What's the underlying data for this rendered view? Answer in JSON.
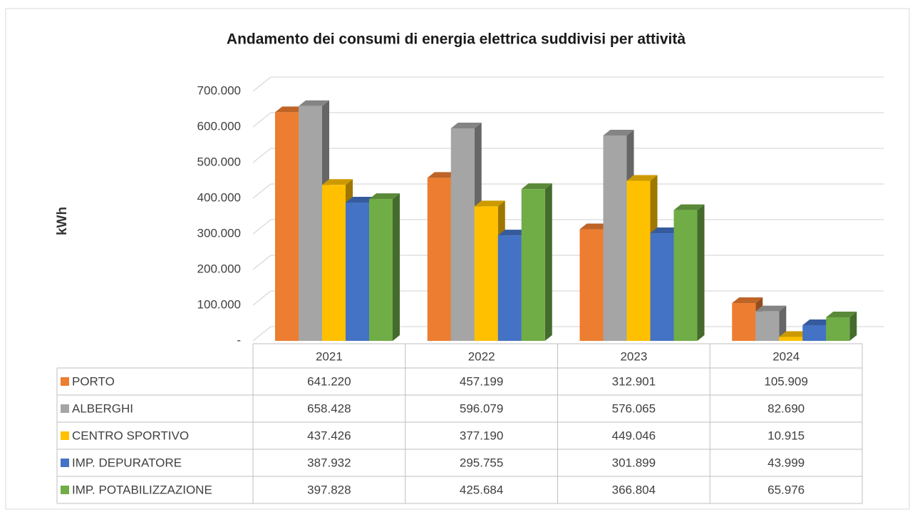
{
  "chart_data": {
    "type": "bar3d",
    "title": "Andamento dei consumi di energia elettrica suddivisi per attività",
    "y_label": "kWh",
    "categories": [
      "2021",
      "2022",
      "2023",
      "2024"
    ],
    "ylim": [
      0,
      700000
    ],
    "yticks": [
      {
        "value": 0,
        "label": "-"
      },
      {
        "value": 100000,
        "label": "100.000"
      },
      {
        "value": 200000,
        "label": "200.000"
      },
      {
        "value": 300000,
        "label": "300.000"
      },
      {
        "value": 400000,
        "label": "400.000"
      },
      {
        "value": 500000,
        "label": "500.000"
      },
      {
        "value": 600000,
        "label": "600.000"
      },
      {
        "value": 700000,
        "label": "700.000"
      }
    ],
    "grid": true,
    "series": [
      {
        "name": "PORTO",
        "color": "#ED7D31",
        "values": [
          641220,
          457199,
          312901,
          105909
        ],
        "value_labels": [
          "641.220",
          "457.199",
          "312.901",
          "105.909"
        ]
      },
      {
        "name": "ALBERGHI",
        "color": "#A5A5A5",
        "values": [
          658428,
          596079,
          576065,
          82690
        ],
        "value_labels": [
          "658.428",
          "596.079",
          "576.065",
          "82.690"
        ]
      },
      {
        "name": "CENTRO SPORTIVO",
        "color": "#FFC000",
        "values": [
          437426,
          377190,
          449046,
          10915
        ],
        "value_labels": [
          "437.426",
          "377.190",
          "449.046",
          "10.915"
        ]
      },
      {
        "name": "IMP. DEPURATORE",
        "color": "#4472C4",
        "values": [
          387932,
          295755,
          301899,
          43999
        ],
        "value_labels": [
          "387.932",
          "295.755",
          "301.899",
          "43.999"
        ]
      },
      {
        "name": "IMP. POTABILIZZAZIONE",
        "color": "#70AD47",
        "values": [
          397828,
          425684,
          366804,
          65976
        ],
        "value_labels": [
          "397.828",
          "425.684",
          "366.804",
          "65.976"
        ]
      }
    ]
  }
}
